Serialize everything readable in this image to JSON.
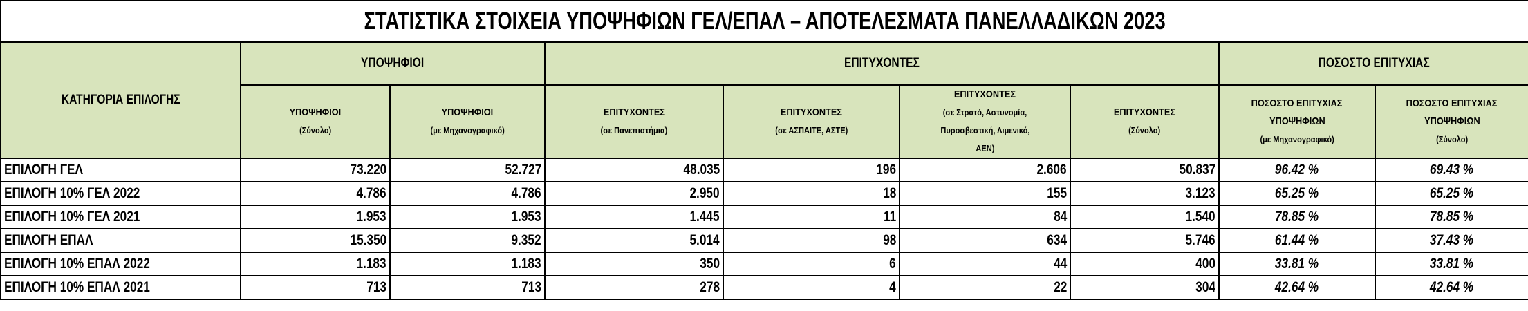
{
  "title": "ΣΤΑΤΙΣΤΙΚΑ ΣΤΟΙΧΕΙΑ ΥΠΟΨΗΦΙΩΝ ΓΕΛ/ΕΠΑΛ – ΑΠΟΤΕΛΕΣΜΑΤΑ ΠΑΝΕΛΛΑΔΙΚΩΝ 2023",
  "colors": {
    "header_bg": "#d8e4bc",
    "border": "#000000"
  },
  "header": {
    "category": "ΚΑΤΗΓΟΡΙΑ ΕΠΙΛΟΓΗΣ",
    "groups": [
      "ΥΠΟΨΗΦΙΟΙ",
      "ΕΠΙΤΥΧΟΝΤΕΣ",
      "ΠΟΣΟΣΤΟ ΕΠΙΤΥΧΙΑΣ"
    ],
    "columns": [
      {
        "l1": "ΥΠΟΨΗΦΙΟΙ",
        "l2": "(Σύνολο)"
      },
      {
        "l1": "ΥΠΟΨΗΦΙΟΙ",
        "l2": "(με Μηχανογραφικό)"
      },
      {
        "l1": "ΕΠΙΤΥΧΟΝΤΕΣ",
        "l2": "(σε Πανεπιστήμια)"
      },
      {
        "l1": "ΕΠΙΤΥΧΟΝΤΕΣ",
        "l2": "(σε ΑΣΠΑΙΤΕ, ΑΣΤΕ)"
      },
      {
        "l1": "ΕΠΙΤΥΧΟΝΤΕΣ",
        "l2": "(σε Στρατό, Αστυνομία,",
        "l3": "Πυροσβεστική, Λιμενικό,",
        "l4": "ΑΕΝ)"
      },
      {
        "l1": "ΕΠΙΤΥΧΟΝΤΕΣ",
        "l2": "(Σύνολο)"
      },
      {
        "l1": "ΠΟΣΟΣΤΟ ΕΠΙΤΥΧΙΑΣ",
        "l1b": "ΥΠΟΨΗΦΙΩΝ",
        "l2": "(με Μηχανογραφικό)"
      },
      {
        "l1": "ΠΟΣΟΣΤΟ ΕΠΙΤΥΧΙΑΣ",
        "l1b": "ΥΠΟΨΗΦΙΩΝ",
        "l2": "(Σύνολο)"
      }
    ]
  },
  "rows": [
    [
      "ΕΠΙΛΟΓΗ ΓΕΛ",
      "73.220",
      "52.727",
      "48.035",
      "196",
      "2.606",
      "50.837",
      "96.42 %",
      "69.43 %"
    ],
    [
      "ΕΠΙΛΟΓΗ 10% ΓΕΛ 2022",
      "4.786",
      "4.786",
      "2.950",
      "18",
      "155",
      "3.123",
      "65.25 %",
      "65.25 %"
    ],
    [
      "ΕΠΙΛΟΓΗ 10% ΓΕΛ 2021",
      "1.953",
      "1.953",
      "1.445",
      "11",
      "84",
      "1.540",
      "78.85 %",
      "78.85 %"
    ],
    [
      "ΕΠΙΛΟΓΗ ΕΠΑΛ",
      "15.350",
      "9.352",
      "5.014",
      "98",
      "634",
      "5.746",
      "61.44 %",
      "37.43 %"
    ],
    [
      "ΕΠΙΛΟΓΗ 10% ΕΠΑΛ 2022",
      "1.183",
      "1.183",
      "350",
      "6",
      "44",
      "400",
      "33.81 %",
      "33.81 %"
    ],
    [
      "ΕΠΙΛΟΓΗ 10% ΕΠΑΛ 2021",
      "713",
      "713",
      "278",
      "4",
      "22",
      "304",
      "42.64 %",
      "42.64 %"
    ]
  ]
}
